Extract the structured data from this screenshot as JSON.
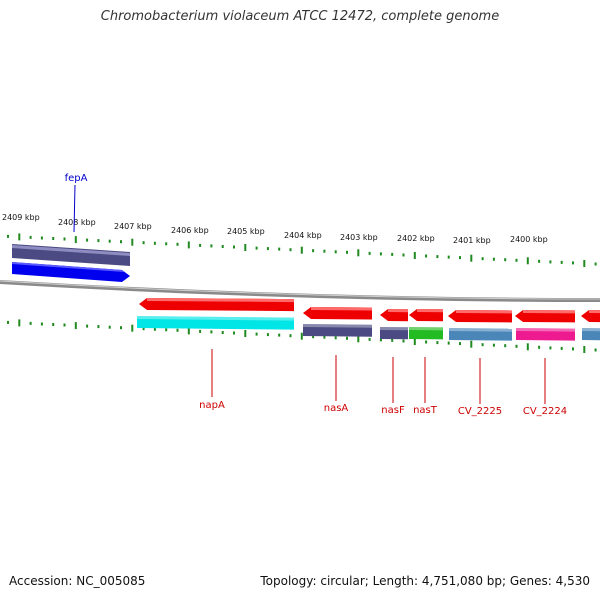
{
  "title": "Chromobacterium violaceum ATCC 12472, complete genome",
  "footer": {
    "accession": "Accession: NC_005085",
    "topology": "Topology: circular; Length: 4,751,080 bp; Genes: 4,530"
  },
  "colors": {
    "backbone": "#8a8a8a",
    "tick": "#1f8a1f",
    "label_red": "#cc0000",
    "label_blue": "#0000cc"
  },
  "scale_labels": [
    "2409 kbp",
    "2408 kbp",
    "2407 kbp",
    "2406 kbp",
    "2405 kbp",
    "2404 kbp",
    "2403 kbp",
    "2402 kbp",
    "2401 kbp",
    "2400 kbp"
  ],
  "genes": [
    {
      "name": "fepA",
      "strand": "+",
      "color": "#0000ee",
      "shadow_color": "#4b4a82",
      "label_color": "#0000cc"
    },
    {
      "name": "napA",
      "strand": "-",
      "color": "#ee0000",
      "shadow_color": "#00e5e5",
      "label_color": "#cc0000"
    },
    {
      "name": "nasA",
      "strand": "-",
      "color": "#ee0000",
      "shadow_color": "#4b4a82",
      "label_color": "#cc0000"
    },
    {
      "name": "nasF",
      "strand": "-",
      "color": "#ee0000",
      "shadow_color": "#4b4a82",
      "label_color": "#cc0000"
    },
    {
      "name": "nasT",
      "strand": "-",
      "color": "#ee0000",
      "shadow_color": "#22bb22",
      "label_color": "#cc0000"
    },
    {
      "name": "CV_2225",
      "strand": "-",
      "color": "#ee0000",
      "shadow_color": "#4a86b8",
      "label_color": "#cc0000"
    },
    {
      "name": "CV_2224",
      "strand": "-",
      "color": "#ee0000",
      "shadow_color": "#ee1a90",
      "label_color": "#cc0000"
    },
    {
      "name": "",
      "strand": "-",
      "color": "#ee0000",
      "shadow_color": "#4a86b8",
      "label_color": "#cc0000"
    }
  ]
}
